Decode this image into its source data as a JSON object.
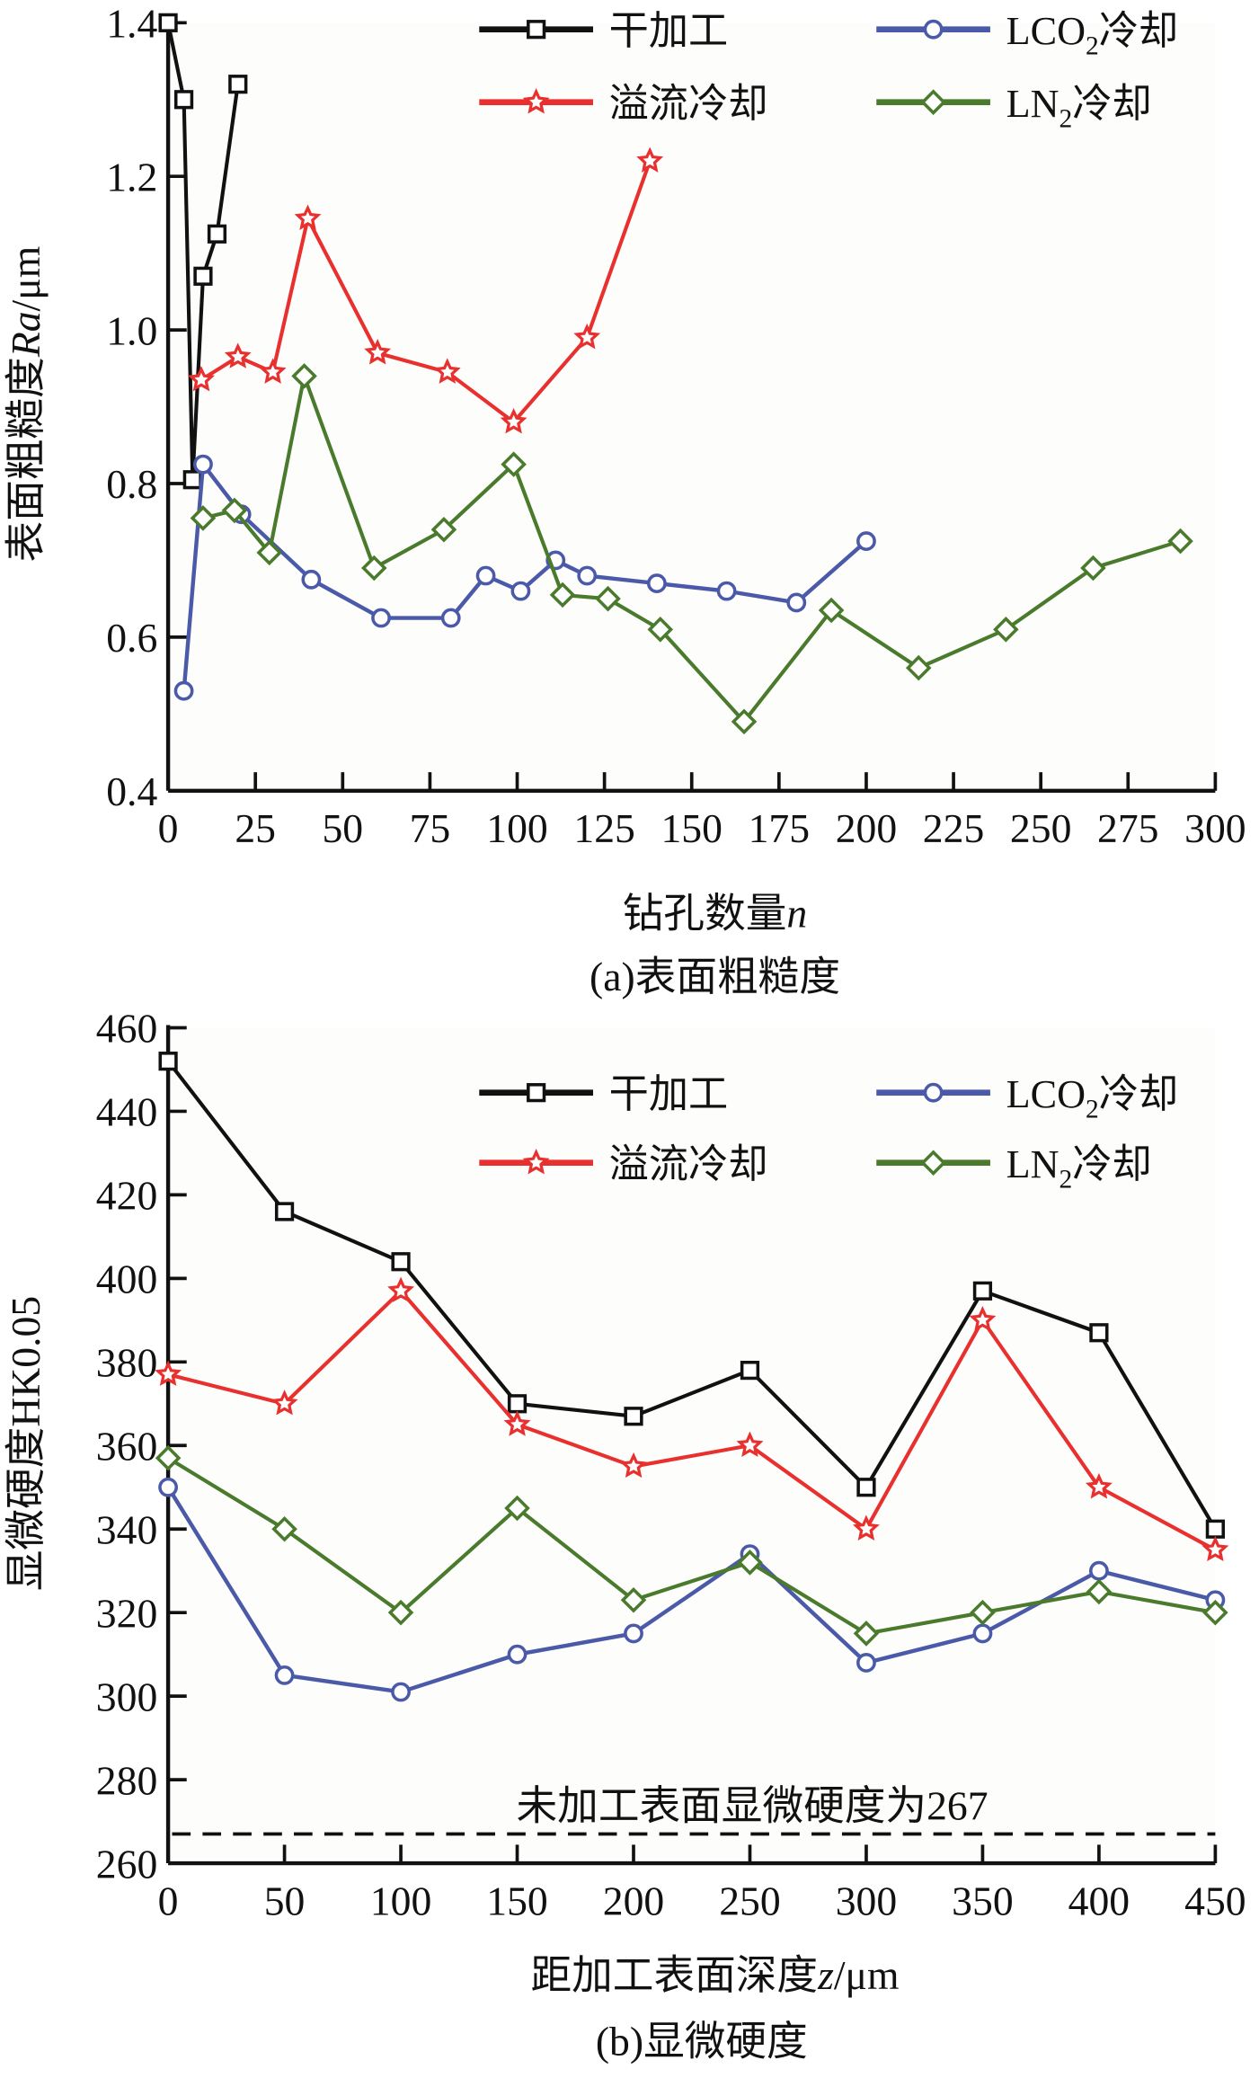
{
  "chart_data": [
    {
      "type": "line",
      "caption": "(a)表面粗糙度",
      "xlabel": "钻孔数量n",
      "xlabel_parts": {
        "main": "钻孔数量",
        "var": "n"
      },
      "ylabel": "表面粗糙度Ra/μm",
      "ylabel_parts": {
        "main": "表面粗糙度",
        "var": "Ra",
        "unit": "/μm"
      },
      "xlim": [
        0,
        300
      ],
      "ylim": [
        0.4,
        1.4
      ],
      "xticks": [
        "0",
        "25",
        "50",
        "75",
        "100",
        "125",
        "150",
        "175",
        "200",
        "225",
        "250",
        "275",
        "300"
      ],
      "yticks": [
        "0.4",
        "0.6",
        "0.8",
        "1.0",
        "1.2",
        "1.4"
      ],
      "legend_position": "top-right",
      "series": [
        {
          "name": "干加工",
          "color": "#111111",
          "marker": "square",
          "x": [
            0,
            4.5,
            7,
            10,
            14,
            20
          ],
          "y": [
            1.4,
            1.3,
            0.805,
            1.07,
            1.125,
            1.32
          ]
        },
        {
          "name": "溢流冷却",
          "color": "#e8312f",
          "marker": "star",
          "x": [
            9.5,
            20,
            30,
            40,
            60,
            80,
            99,
            120,
            138
          ],
          "y": [
            0.935,
            0.965,
            0.945,
            1.145,
            0.97,
            0.945,
            0.88,
            0.99,
            1.22
          ]
        },
        {
          "name": "LCO2冷却",
          "name_parts": [
            "LCO",
            "2",
            "冷却"
          ],
          "color": "#4a5aa8",
          "marker": "circle",
          "x": [
            4.5,
            10,
            21,
            41,
            61,
            81,
            91,
            101,
            111,
            120,
            140,
            160,
            180,
            200
          ],
          "y": [
            0.53,
            0.825,
            0.76,
            0.675,
            0.625,
            0.625,
            0.68,
            0.66,
            0.7,
            0.68,
            0.67,
            0.66,
            0.645,
            0.725
          ]
        },
        {
          "name": "LN2冷却",
          "name_parts": [
            "LN",
            "2",
            "冷却"
          ],
          "color": "#4a7a2c",
          "marker": "diamond",
          "x": [
            10,
            19,
            29,
            39,
            59,
            79,
            99,
            113,
            126,
            141,
            165,
            190,
            215,
            240,
            265,
            290
          ],
          "y": [
            0.755,
            0.765,
            0.71,
            0.94,
            0.69,
            0.74,
            0.825,
            0.655,
            0.65,
            0.61,
            0.49,
            0.635,
            0.56,
            0.61,
            0.69,
            0.725
          ]
        }
      ]
    },
    {
      "type": "line",
      "caption": "(b)显微硬度",
      "xlabel": "距加工表面深度z/μm",
      "xlabel_parts": {
        "main": "距加工表面深度",
        "var": "z",
        "unit": "/μm"
      },
      "ylabel": "显微硬度HK0.05",
      "xlim": [
        0,
        450
      ],
      "ylim": [
        260,
        460
      ],
      "xticks": [
        "0",
        "50",
        "100",
        "150",
        "200",
        "250",
        "300",
        "350",
        "400",
        "450"
      ],
      "yticks": [
        "260",
        "280",
        "300",
        "320",
        "340",
        "360",
        "380",
        "400",
        "420",
        "440",
        "460"
      ],
      "legend_position": "top-right",
      "reference_line": {
        "value": 267,
        "label": "未加工表面显微硬度为267"
      },
      "series": [
        {
          "name": "干加工",
          "color": "#111111",
          "marker": "square",
          "x": [
            0,
            50,
            100,
            150,
            200,
            250,
            300,
            350,
            400,
            450
          ],
          "y": [
            452,
            416,
            404,
            370,
            367,
            378,
            350,
            397,
            387,
            340
          ]
        },
        {
          "name": "溢流冷却",
          "color": "#e8312f",
          "marker": "star",
          "x": [
            0,
            50,
            100,
            150,
            200,
            250,
            300,
            350,
            400,
            450
          ],
          "y": [
            377,
            370,
            397,
            365,
            355,
            360,
            340,
            390,
            350,
            335
          ]
        },
        {
          "name": "LCO2冷却",
          "name_parts": [
            "LCO",
            "2",
            "冷却"
          ],
          "color": "#4a5aa8",
          "marker": "circle",
          "x": [
            0,
            50,
            100,
            150,
            200,
            250,
            300,
            350,
            400,
            450
          ],
          "y": [
            350,
            305,
            301,
            310,
            315,
            334,
            308,
            315,
            330,
            323
          ]
        },
        {
          "name": "LN2冷却",
          "name_parts": [
            "LN",
            "2",
            "冷却"
          ],
          "color": "#4a7a2c",
          "marker": "diamond",
          "x": [
            0,
            50,
            100,
            150,
            200,
            250,
            300,
            350,
            400,
            450
          ],
          "y": [
            357,
            340,
            320,
            345,
            323,
            332,
            315,
            320,
            325,
            320
          ]
        }
      ]
    }
  ]
}
